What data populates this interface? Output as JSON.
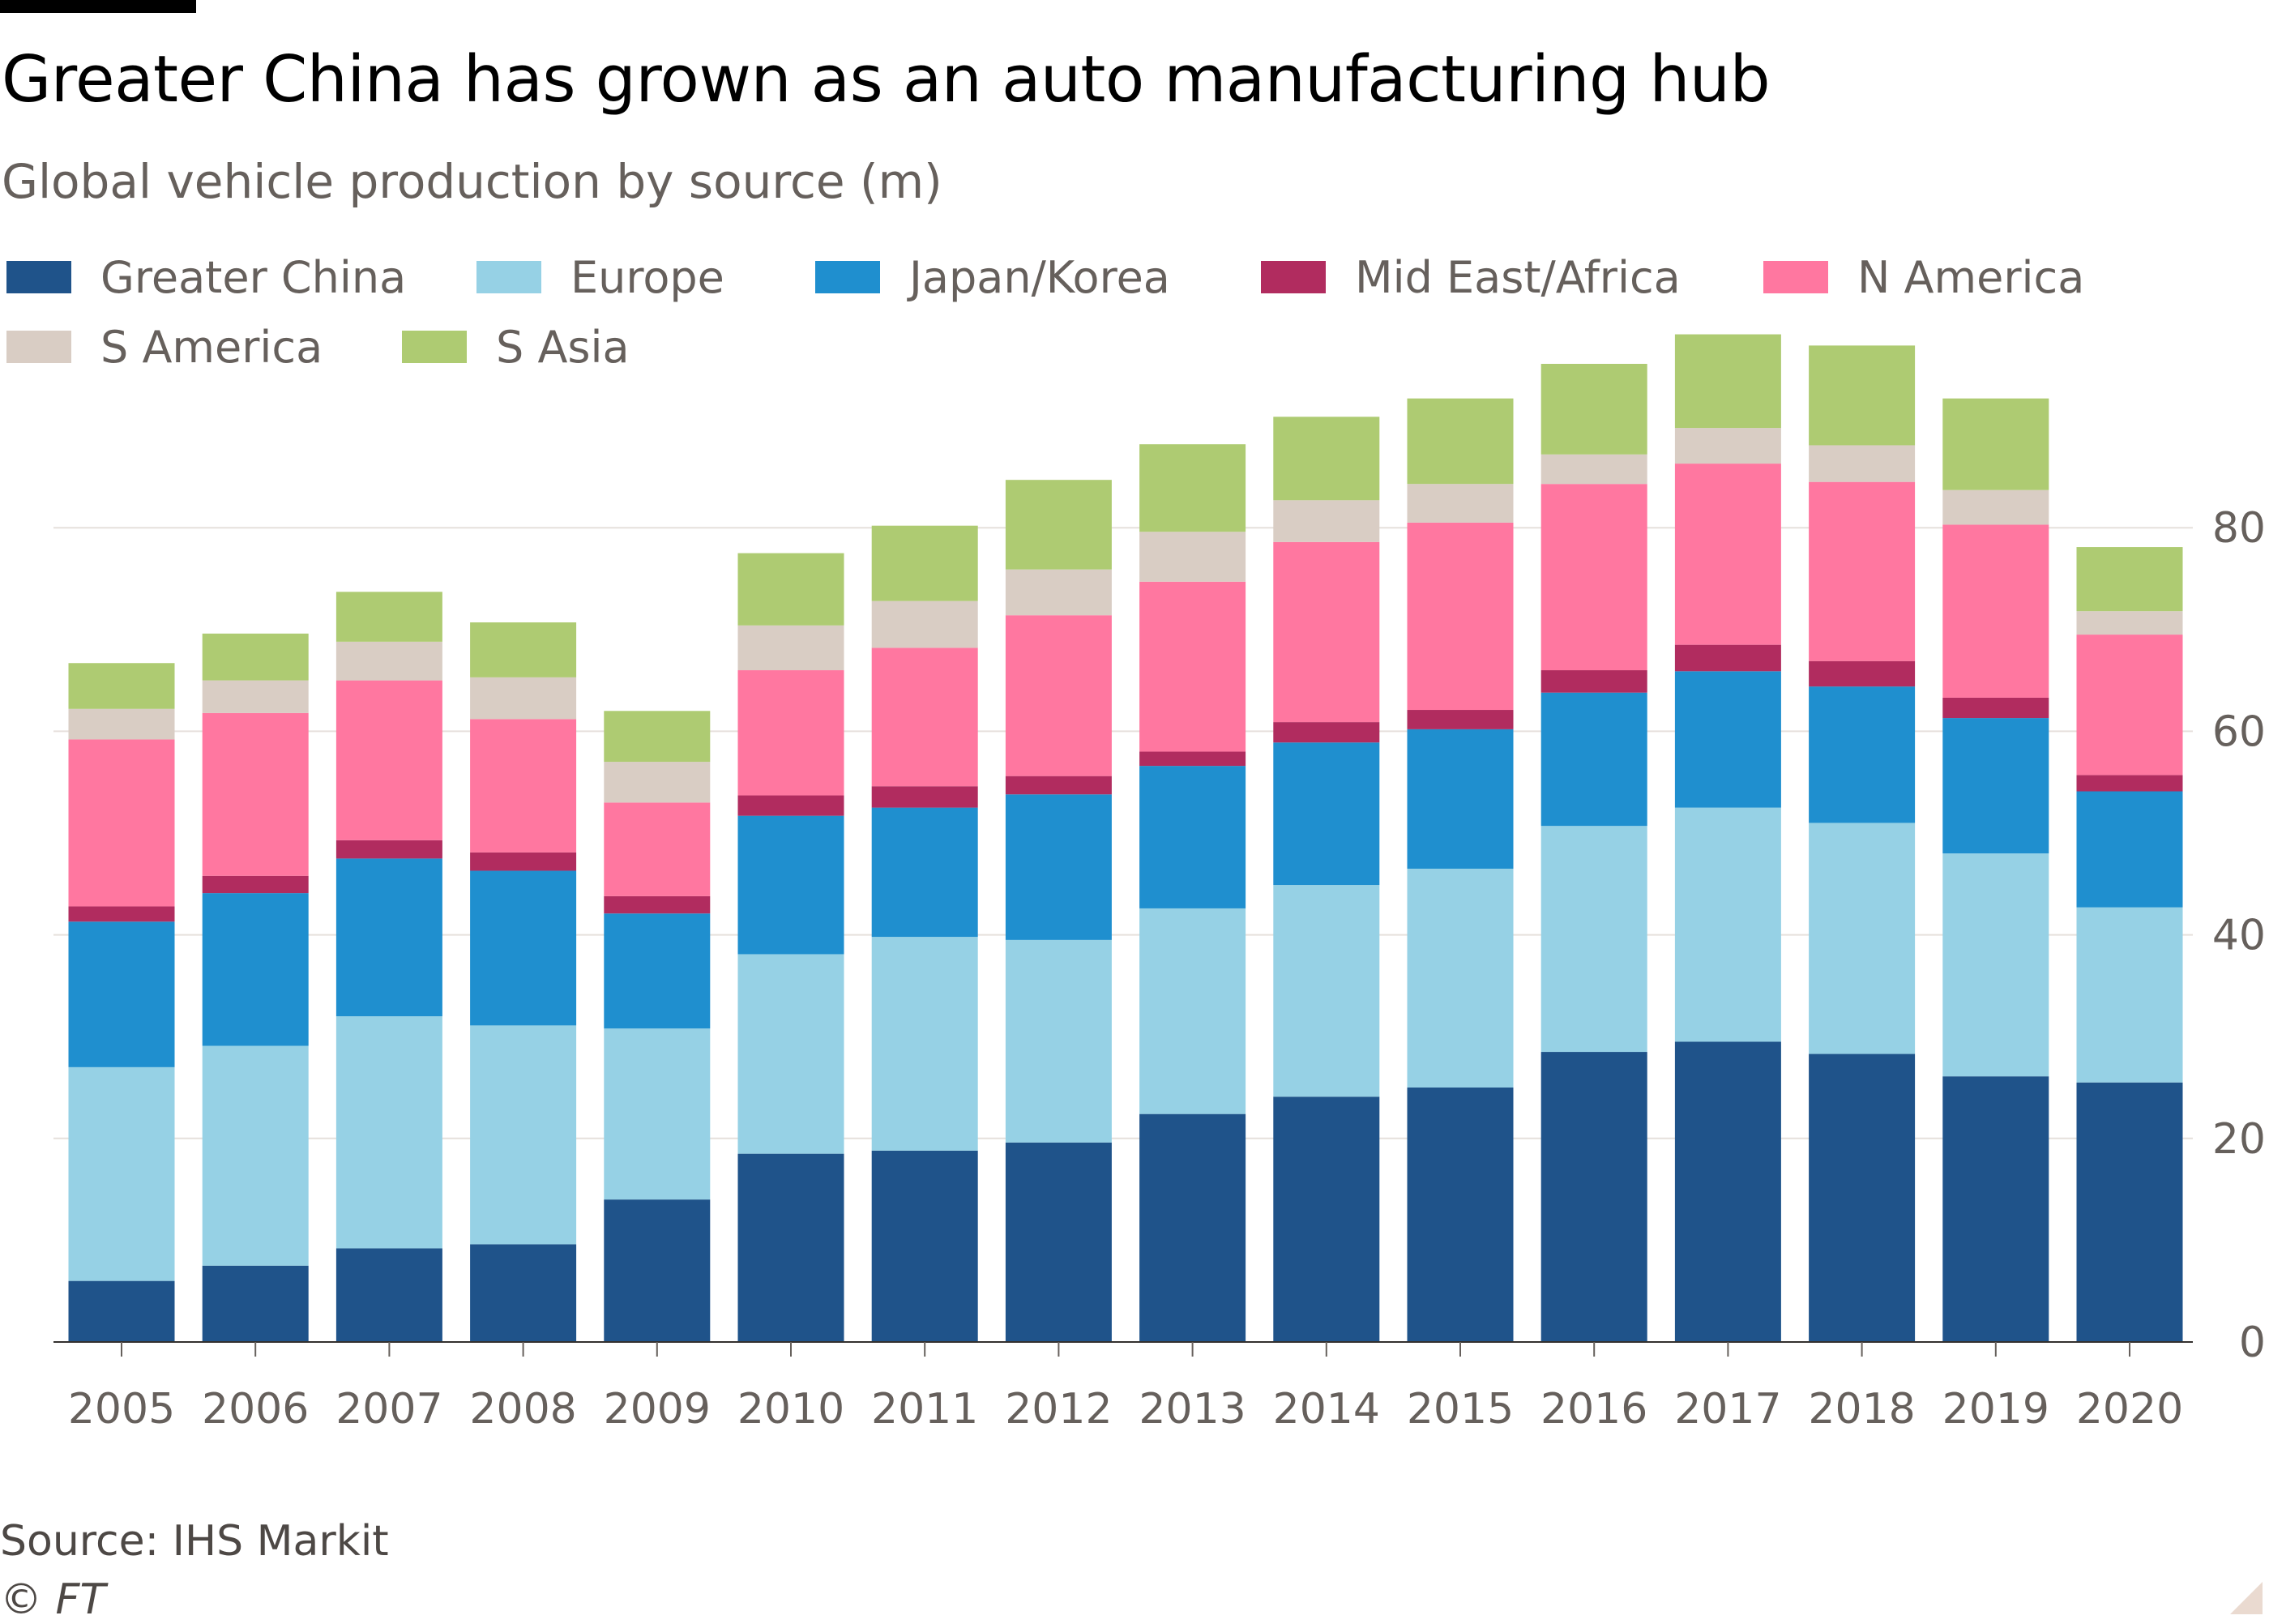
{
  "header": {
    "title": "Greater China has grown as an auto manufacturing hub",
    "subtitle": "Global vehicle production by source (m)"
  },
  "footer": {
    "source": "Source: IHS Markit",
    "copyright": "© FT"
  },
  "chart_data": {
    "type": "bar",
    "stacked": true,
    "title": "Greater China has grown as an auto manufacturing hub",
    "subtitle": "Global vehicle production by source (m)",
    "xlabel": "",
    "ylabel": "",
    "y_axis_side": "right",
    "ylim": [
      0,
      100
    ],
    "yticks": [
      0,
      20,
      40,
      60,
      80
    ],
    "gridlines": true,
    "legend_position": "top-left",
    "categories": [
      "2005",
      "2006",
      "2007",
      "2008",
      "2009",
      "2010",
      "2011",
      "2012",
      "2013",
      "2014",
      "2015",
      "2016",
      "2017",
      "2018",
      "2019",
      "2020"
    ],
    "series": [
      {
        "name": "Greater China",
        "color": "#1f538a",
        "values": [
          6.0,
          7.5,
          9.2,
          9.6,
          14.0,
          18.5,
          18.8,
          19.6,
          22.4,
          24.1,
          25.0,
          28.5,
          29.5,
          28.3,
          26.1,
          25.5
        ]
      },
      {
        "name": "Europe",
        "color": "#96d1e5",
        "values": [
          21.0,
          21.6,
          22.8,
          21.5,
          16.8,
          19.6,
          21.0,
          19.9,
          20.2,
          20.8,
          21.5,
          22.2,
          23.0,
          22.7,
          21.9,
          17.2
        ]
      },
      {
        "name": "Japan/Korea",
        "color": "#1f8fcf",
        "values": [
          14.3,
          15.0,
          15.5,
          15.2,
          11.3,
          13.6,
          12.7,
          14.3,
          14.0,
          14.0,
          13.7,
          13.1,
          13.4,
          13.4,
          13.3,
          11.4
        ]
      },
      {
        "name": "Mid East/Africa",
        "color": "#b12c5f",
        "values": [
          1.5,
          1.7,
          1.8,
          1.8,
          1.7,
          2.0,
          2.1,
          1.8,
          1.4,
          2.0,
          1.9,
          2.2,
          2.6,
          2.5,
          2.0,
          1.6
        ]
      },
      {
        "name": "N America",
        "color": "#ff77a0",
        "values": [
          16.4,
          16.0,
          15.7,
          13.1,
          9.2,
          12.3,
          13.6,
          15.8,
          16.7,
          17.7,
          18.4,
          18.3,
          17.8,
          17.6,
          17.0,
          13.8
        ]
      },
      {
        "name": "S America",
        "color": "#d9cdc4",
        "values": [
          3.0,
          3.2,
          3.8,
          4.1,
          4.0,
          4.4,
          4.6,
          4.5,
          4.9,
          4.1,
          3.8,
          2.9,
          3.5,
          3.6,
          3.4,
          2.3
        ]
      },
      {
        "name": "S Asia",
        "color": "#aecb72",
        "values": [
          4.5,
          4.6,
          4.9,
          5.4,
          5.0,
          7.1,
          7.4,
          8.8,
          8.6,
          8.2,
          8.4,
          8.9,
          9.2,
          9.8,
          9.0,
          6.3
        ]
      }
    ]
  }
}
